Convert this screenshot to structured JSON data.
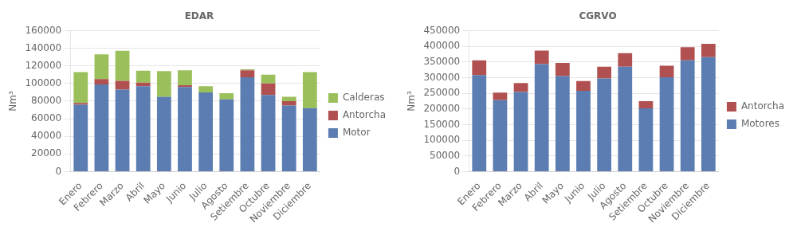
{
  "chart_data": [
    {
      "type": "bar",
      "title": "EDAR",
      "categories": [
        "Enero",
        "Febrero",
        "Marzo",
        "Abril",
        "Mayo",
        "Junio",
        "Julio",
        "Agosto",
        "Setiembre",
        "Octubre",
        "Noviembre",
        "Diciembre"
      ],
      "series": [
        {
          "name": "Motor",
          "color": "#5B7DB1",
          "values": [
            76000,
            99000,
            93000,
            97000,
            85000,
            96000,
            90000,
            82000,
            107000,
            87000,
            75000,
            72000
          ]
        },
        {
          "name": "Antorcha",
          "color": "#B05050",
          "values": [
            2000,
            6000,
            10000,
            4000,
            0,
            2000,
            0,
            0,
            8000,
            13000,
            5000,
            0
          ]
        },
        {
          "name": "Calderas",
          "color": "#9BBF5A",
          "values": [
            35000,
            28000,
            34000,
            13500,
            29000,
            17000,
            7000,
            7000,
            1000,
            10000,
            5000,
            41000
          ]
        }
      ],
      "ylabel": "Nm³",
      "ylim": [
        0,
        160000
      ],
      "yticks": [
        0,
        20000,
        40000,
        60000,
        80000,
        100000,
        120000,
        140000,
        160000
      ],
      "stacked": true,
      "grid": true,
      "legend": "right"
    },
    {
      "type": "bar",
      "title": "CGRVO",
      "categories": [
        "Enero",
        "Febrero",
        "Marzo",
        "Abril",
        "Mayo",
        "Junio",
        "Julio",
        "Agosto",
        "Setiembre",
        "Octubre",
        "Noviembre",
        "Diciembre"
      ],
      "series": [
        {
          "name": "Motores",
          "color": "#5B7DB1",
          "values": [
            308000,
            228000,
            254000,
            343000,
            305000,
            258000,
            297000,
            335000,
            202000,
            301000,
            355000,
            365000
          ]
        },
        {
          "name": "Antorcha",
          "color": "#B05050",
          "values": [
            47000,
            24000,
            29000,
            43000,
            42000,
            31000,
            38000,
            43000,
            23000,
            37000,
            42000,
            43000
          ]
        }
      ],
      "ylabel": "Nm³",
      "ylim": [
        0,
        450000
      ],
      "yticks": [
        0,
        50000,
        100000,
        150000,
        200000,
        250000,
        300000,
        350000,
        400000,
        450000
      ],
      "stacked": true,
      "grid": true,
      "legend": "right"
    }
  ]
}
